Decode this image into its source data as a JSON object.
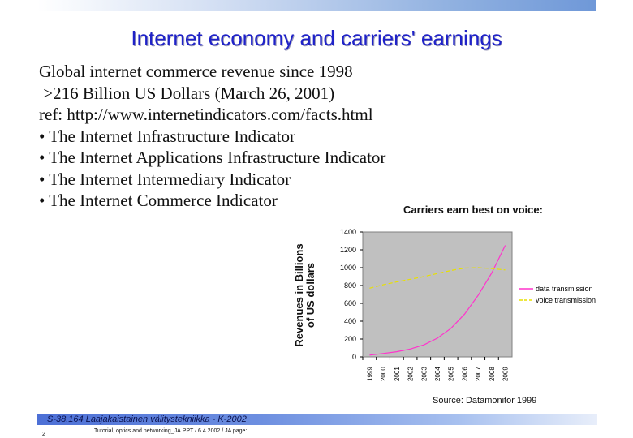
{
  "title": "Internet economy and carriers' earnings",
  "body_lines": [
    "Global internet commerce revenue since 1998",
    " >216 Billion US Dollars (March 26, 2001)",
    "ref: http://www.internetindicators.com/facts.html",
    "• The Internet Infrastructure Indicator",
    "• The Internet Applications Infrastructure Indicator",
    "• The Internet Intermediary Indicator",
    "• The Internet Commerce Indicator"
  ],
  "chart_caption": "Carriers earn best on voice:",
  "source": "Source: Datamonitor 1999",
  "footer": {
    "course": "S-38.164 Laajakaistainen välitystekniikka - K-2002",
    "meta": "Tutorial, optics and networking_JA.PPT / 6.4.2002 / JA    page:",
    "page": "2"
  },
  "chart_data": {
    "type": "line",
    "ylabel": "Revenues in Billions of US dollars",
    "ylabel_lines": [
      "Revenues in Billions",
      "of US dollars"
    ],
    "ylim": [
      0,
      1400
    ],
    "yticks": [
      0,
      200,
      400,
      600,
      800,
      1000,
      1200,
      1400
    ],
    "categories": [
      "1999",
      "2000",
      "2001",
      "2002",
      "2003",
      "2004",
      "2005",
      "2006",
      "2007",
      "2008",
      "2009"
    ],
    "grid": false,
    "legend_position": "right",
    "series": [
      {
        "name": "data transmission",
        "color": "#ff33cc",
        "style": "solid",
        "values": [
          20,
          38,
          58,
          88,
          135,
          210,
          320,
          480,
          690,
          940,
          1250
        ]
      },
      {
        "name": "voice transmission",
        "color": "#e8e000",
        "style": "dashed",
        "values": [
          770,
          808,
          840,
          870,
          900,
          935,
          968,
          995,
          1000,
          990,
          975
        ]
      }
    ],
    "background": "#c0c0c0"
  }
}
